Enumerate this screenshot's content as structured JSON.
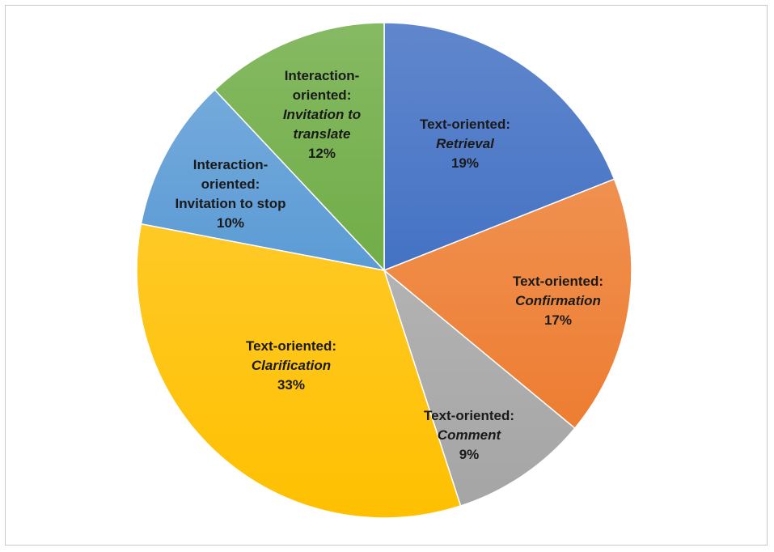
{
  "chart_data": {
    "type": "pie",
    "title": "",
    "start_angle_deg": 0,
    "direction": "clockwise",
    "slices": [
      {
        "lines": [
          {
            "t": "Text-oriented:",
            "i": false
          },
          {
            "t": "Retrieval",
            "i": true
          },
          {
            "t": "19%",
            "i": false
          }
        ],
        "category": "Text-oriented",
        "subcategory": "Retrieval",
        "value": 19,
        "color": "#4472c4"
      },
      {
        "lines": [
          {
            "t": "Text-oriented:",
            "i": false
          },
          {
            "t": "Confirmation",
            "i": true
          },
          {
            "t": "17%",
            "i": false
          }
        ],
        "category": "Text-oriented",
        "subcategory": "Confirmation",
        "value": 17,
        "color": "#ed7d31"
      },
      {
        "lines": [
          {
            "t": "Text-oriented:",
            "i": false
          },
          {
            "t": "Comment",
            "i": true
          },
          {
            "t": "9%",
            "i": false
          }
        ],
        "category": "Text-oriented",
        "subcategory": "Comment",
        "value": 9,
        "color": "#a5a5a5"
      },
      {
        "lines": [
          {
            "t": "Text-oriented:",
            "i": false
          },
          {
            "t": "Clarification",
            "i": true
          },
          {
            "t": "33%",
            "i": false
          }
        ],
        "category": "Text-oriented",
        "subcategory": "Clarification",
        "value": 33,
        "color": "#ffc000"
      },
      {
        "lines": [
          {
            "t": "Interaction-",
            "i": false
          },
          {
            "t": "oriented:",
            "i": false
          },
          {
            "t": "Invitation to stop",
            "i": false
          },
          {
            "t": "10%",
            "i": false
          }
        ],
        "category": "Interaction-oriented",
        "subcategory": "Invitation to stop",
        "value": 10,
        "color": "#5b9bd5"
      },
      {
        "lines": [
          {
            "t": "Interaction-",
            "i": false
          },
          {
            "t": "oriented:",
            "i": false
          },
          {
            "t": "Invitation to",
            "i": true
          },
          {
            "t": "translate",
            "i": true
          },
          {
            "t": "12%",
            "i": false
          }
        ],
        "category": "Interaction-oriented",
        "subcategory": "Invitation to translate",
        "value": 12,
        "color": "#70ad47"
      }
    ]
  }
}
